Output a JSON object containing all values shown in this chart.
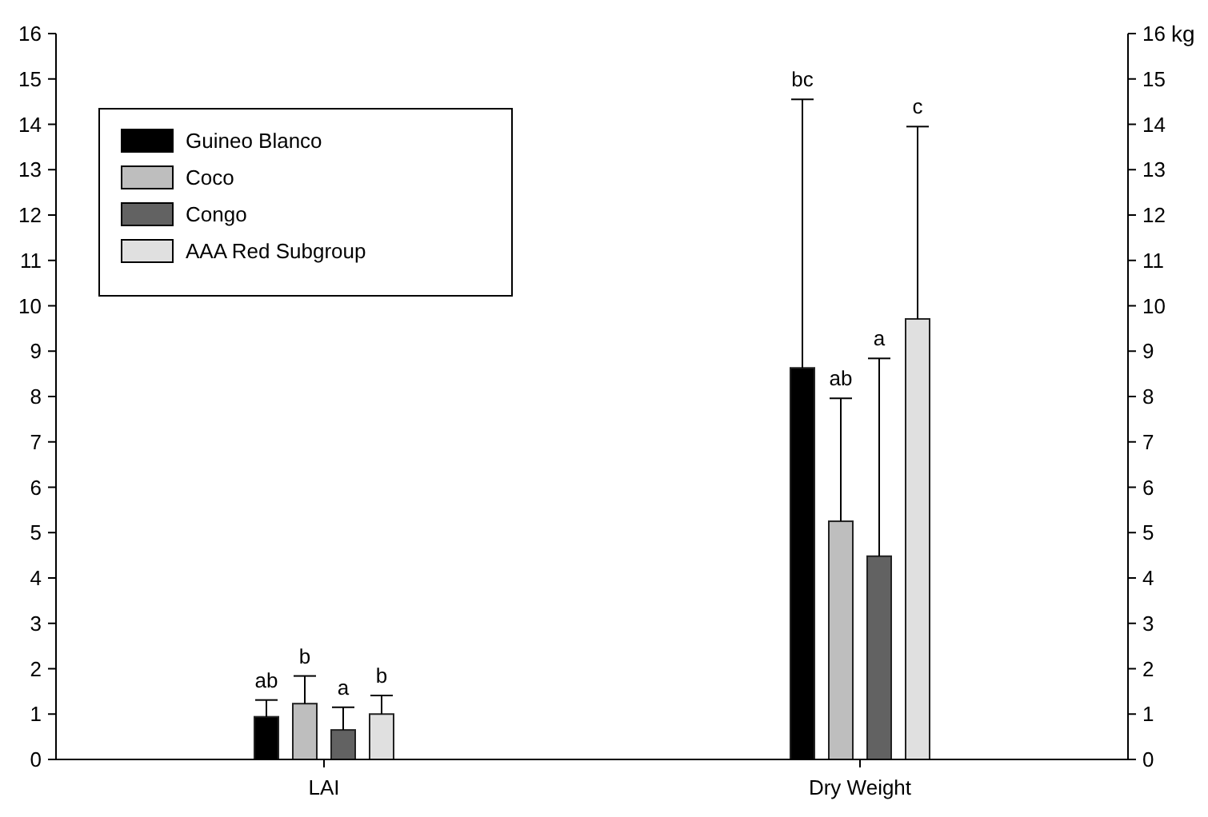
{
  "chart_data": {
    "type": "bar",
    "categories": [
      "LAI",
      "Dry Weight"
    ],
    "series": [
      {
        "name": "Guineo Blanco",
        "color": "#000000",
        "values": [
          0.94,
          8.63
        ],
        "errors": [
          [
            0.94,
            1.31
          ],
          [
            8.63,
            14.55
          ]
        ]
      },
      {
        "name": "Coco",
        "color": "#bebebe",
        "values": [
          1.23,
          5.25
        ],
        "errors": [
          [
            1.23,
            1.84
          ],
          [
            5.25,
            7.96
          ]
        ]
      },
      {
        "name": "Congo",
        "color": "#626262",
        "values": [
          0.65,
          4.48
        ],
        "errors": [
          [
            0.65,
            1.15
          ],
          [
            4.48,
            8.84
          ]
        ]
      },
      {
        "name": "AAA Red Subgroup",
        "color": "#e0e0e0",
        "values": [
          1.0,
          9.71
        ],
        "errors": [
          [
            1.0,
            1.41
          ],
          [
            9.71,
            13.95
          ]
        ]
      }
    ],
    "ylim": [
      0,
      16
    ],
    "yticks": [
      0,
      1,
      2,
      3,
      4,
      5,
      6,
      7,
      8,
      9,
      10,
      11,
      12,
      13,
      14,
      15,
      16
    ],
    "y2lim": [
      0,
      16
    ],
    "y2ticks": [
      0,
      1,
      2,
      3,
      4,
      5,
      6,
      7,
      8,
      9,
      10,
      11,
      12,
      13,
      14,
      15,
      16
    ],
    "y2label": "kg",
    "annotations": [
      "ab",
      "b",
      "a",
      "b",
      "bc",
      "ab",
      "a",
      "c"
    ],
    "legend": "top left",
    "grid": false
  }
}
